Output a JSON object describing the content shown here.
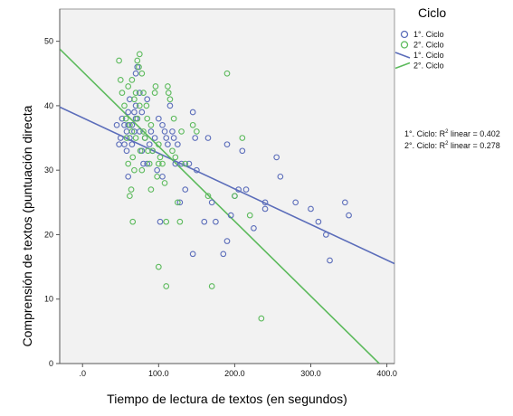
{
  "chart_data": {
    "type": "scatter",
    "xlabel": "Tiempo de lectura de textos (en segundos)",
    "ylabel": "Comprensión de textos (puntuación directa",
    "xlim": [
      -30,
      410
    ],
    "ylim": [
      0,
      55
    ],
    "x_ticks": [
      ".0",
      "100.0",
      "200.0",
      "300.0",
      "400.0"
    ],
    "x_tick_values": [
      0,
      100,
      200,
      300,
      400
    ],
    "y_ticks": [
      "0",
      "10",
      "20",
      "30",
      "40",
      "50"
    ],
    "y_tick_values": [
      0,
      10,
      20,
      30,
      40,
      50
    ],
    "grid": false,
    "legend": {
      "title": "Ciclo",
      "placement": "right",
      "entries": [
        {
          "label": "1°. Ciclo",
          "kind": "marker",
          "series": 0
        },
        {
          "label": "2°. Ciclo",
          "kind": "marker",
          "series": 1
        },
        {
          "label": "1°. Ciclo",
          "kind": "line",
          "series": 0
        },
        {
          "label": "2°. Ciclo",
          "kind": "line",
          "series": 1
        }
      ]
    },
    "annotations": [
      {
        "prefix": "1°. Ciclo: R",
        "sup": "2",
        "suffix": " linear = 0.402"
      },
      {
        "prefix": "2°. Ciclo: R",
        "sup": "2",
        "suffix": " linear = 0.278"
      }
    ],
    "series": [
      {
        "name": "1°. Ciclo",
        "color": "#5b6dba",
        "fit_line": {
          "x_start": -30,
          "y_start": 39.8,
          "x_end": 410,
          "y_end": 15.5
        },
        "points": [
          [
            45,
            37
          ],
          [
            48,
            34
          ],
          [
            50,
            35
          ],
          [
            52,
            38
          ],
          [
            55,
            37
          ],
          [
            55,
            34
          ],
          [
            58,
            36
          ],
          [
            58,
            33
          ],
          [
            60,
            37
          ],
          [
            60,
            39
          ],
          [
            62,
            41
          ],
          [
            62,
            35
          ],
          [
            65,
            37
          ],
          [
            65,
            34
          ],
          [
            68,
            39
          ],
          [
            68,
            36
          ],
          [
            70,
            40
          ],
          [
            70,
            45
          ],
          [
            72,
            46
          ],
          [
            72,
            38
          ],
          [
            75,
            42
          ],
          [
            75,
            36
          ],
          [
            78,
            39
          ],
          [
            78,
            33
          ],
          [
            80,
            31
          ],
          [
            82,
            35
          ],
          [
            85,
            31
          ],
          [
            88,
            34
          ],
          [
            90,
            36
          ],
          [
            92,
            33
          ],
          [
            95,
            35
          ],
          [
            98,
            30
          ],
          [
            100,
            38
          ],
          [
            102,
            22
          ],
          [
            105,
            37
          ],
          [
            108,
            36
          ],
          [
            110,
            35
          ],
          [
            112,
            34
          ],
          [
            115,
            40
          ],
          [
            118,
            36
          ],
          [
            120,
            35
          ],
          [
            122,
            31
          ],
          [
            125,
            34
          ],
          [
            128,
            25
          ],
          [
            130,
            31
          ],
          [
            135,
            27
          ],
          [
            140,
            31
          ],
          [
            145,
            39
          ],
          [
            148,
            35
          ],
          [
            150,
            30
          ],
          [
            145,
            17
          ],
          [
            160,
            22
          ],
          [
            170,
            25
          ],
          [
            175,
            22
          ],
          [
            185,
            17
          ],
          [
            190,
            34
          ],
          [
            190,
            19
          ],
          [
            200,
            26
          ],
          [
            205,
            27
          ],
          [
            210,
            33
          ],
          [
            215,
            27
          ],
          [
            225,
            21
          ],
          [
            240,
            24
          ],
          [
            240,
            25
          ],
          [
            255,
            32
          ],
          [
            260,
            29
          ],
          [
            280,
            25
          ],
          [
            300,
            24
          ],
          [
            310,
            22
          ],
          [
            320,
            20
          ],
          [
            325,
            16
          ],
          [
            345,
            25
          ],
          [
            350,
            23
          ],
          [
            60,
            29
          ],
          [
            85,
            41
          ],
          [
            105,
            29
          ],
          [
            70,
            38
          ],
          [
            165,
            35
          ],
          [
            195,
            23
          ]
        ]
      },
      {
        "name": "2°. Ciclo",
        "color": "#5cba5c",
        "fit_line": {
          "x_start": -30,
          "y_start": 48.8,
          "x_end": 390,
          "y_end": 0
        },
        "points": [
          [
            48,
            47
          ],
          [
            50,
            44
          ],
          [
            52,
            42
          ],
          [
            55,
            40
          ],
          [
            57,
            38
          ],
          [
            58,
            35
          ],
          [
            60,
            43
          ],
          [
            60,
            31
          ],
          [
            62,
            37
          ],
          [
            62,
            26
          ],
          [
            64,
            27
          ],
          [
            65,
            44
          ],
          [
            65,
            36
          ],
          [
            66,
            32
          ],
          [
            68,
            41
          ],
          [
            68,
            30
          ],
          [
            70,
            42
          ],
          [
            70,
            35
          ],
          [
            72,
            38
          ],
          [
            72,
            47
          ],
          [
            74,
            46
          ],
          [
            75,
            40
          ],
          [
            76,
            33
          ],
          [
            78,
            45
          ],
          [
            78,
            30
          ],
          [
            80,
            42
          ],
          [
            80,
            36
          ],
          [
            82,
            35
          ],
          [
            84,
            40
          ],
          [
            85,
            38
          ],
          [
            86,
            33
          ],
          [
            88,
            31
          ],
          [
            90,
            37
          ],
          [
            92,
            33
          ],
          [
            95,
            42
          ],
          [
            96,
            43
          ],
          [
            98,
            29
          ],
          [
            100,
            34
          ],
          [
            100,
            15
          ],
          [
            102,
            32
          ],
          [
            105,
            31
          ],
          [
            108,
            28
          ],
          [
            110,
            12
          ],
          [
            112,
            43
          ],
          [
            113,
            42
          ],
          [
            115,
            41
          ],
          [
            118,
            33
          ],
          [
            120,
            38
          ],
          [
            122,
            32
          ],
          [
            125,
            25
          ],
          [
            128,
            22
          ],
          [
            130,
            36
          ],
          [
            135,
            31
          ],
          [
            150,
            36
          ],
          [
            165,
            26
          ],
          [
            170,
            12
          ],
          [
            190,
            45
          ],
          [
            200,
            26
          ],
          [
            210,
            35
          ],
          [
            220,
            23
          ],
          [
            235,
            7
          ],
          [
            75,
            48
          ],
          [
            90,
            27
          ],
          [
            100,
            31
          ],
          [
            66,
            22
          ],
          [
            110,
            22
          ],
          [
            145,
            37
          ]
        ]
      }
    ]
  }
}
